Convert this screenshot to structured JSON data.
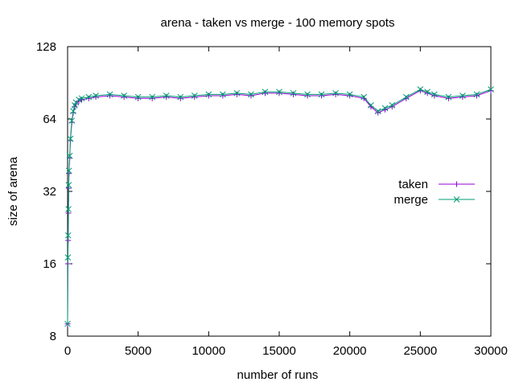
{
  "chart_data": {
    "type": "line",
    "title": "arena - taken vs merge - 100 memory spots",
    "xlabel": "number of runs",
    "ylabel": "size of arena",
    "xlim": [
      0,
      30000
    ],
    "ylim": [
      8,
      128
    ],
    "yscale": "log2",
    "xticks": [
      0,
      5000,
      10000,
      15000,
      20000,
      25000,
      30000
    ],
    "yticks": [
      8,
      16,
      32,
      64,
      128
    ],
    "grid": false,
    "legend_position": "right",
    "series": [
      {
        "name": "taken",
        "color": "#9400d3",
        "marker": "plus",
        "x": [
          0,
          20,
          40,
          60,
          80,
          100,
          150,
          200,
          300,
          400,
          500,
          600,
          800,
          1000,
          1500,
          2000,
          3000,
          4000,
          5000,
          6000,
          7000,
          8000,
          9000,
          10000,
          11000,
          12000,
          13000,
          14000,
          15000,
          16000,
          17000,
          18000,
          19000,
          20000,
          21000,
          21500,
          22000,
          22500,
          23000,
          24000,
          25000,
          25500,
          26000,
          27000,
          28000,
          29000,
          30000
        ],
        "values": [
          9,
          16,
          20,
          26,
          33,
          38,
          44,
          52,
          62,
          68,
          72,
          74,
          76,
          77,
          78,
          79,
          80,
          79,
          78,
          78,
          79,
          78,
          79,
          80,
          80,
          81,
          80,
          82,
          82,
          81,
          80,
          80,
          81,
          80,
          78,
          72,
          68,
          70,
          72,
          78,
          84,
          82,
          80,
          78,
          79,
          80,
          84
        ]
      },
      {
        "name": "merge",
        "color": "#009e73",
        "marker": "cross",
        "x": [
          0,
          20,
          40,
          60,
          80,
          100,
          150,
          200,
          300,
          400,
          500,
          600,
          800,
          1000,
          1500,
          2000,
          3000,
          4000,
          5000,
          6000,
          7000,
          8000,
          9000,
          10000,
          11000,
          12000,
          13000,
          14000,
          15000,
          16000,
          17000,
          18000,
          19000,
          20000,
          21000,
          21500,
          22000,
          22500,
          23000,
          24000,
          25000,
          25500,
          26000,
          27000,
          28000,
          29000,
          30000
        ],
        "values": [
          9,
          17,
          21,
          27,
          34,
          39,
          45,
          53,
          63,
          69,
          73,
          75,
          77,
          78,
          79,
          80,
          81,
          80,
          79,
          79,
          80,
          79,
          80,
          81,
          81,
          82,
          81,
          83,
          83,
          82,
          81,
          81,
          82,
          81,
          79,
          73,
          69,
          71,
          73,
          79,
          85,
          83,
          81,
          79,
          80,
          81,
          85
        ]
      }
    ]
  }
}
